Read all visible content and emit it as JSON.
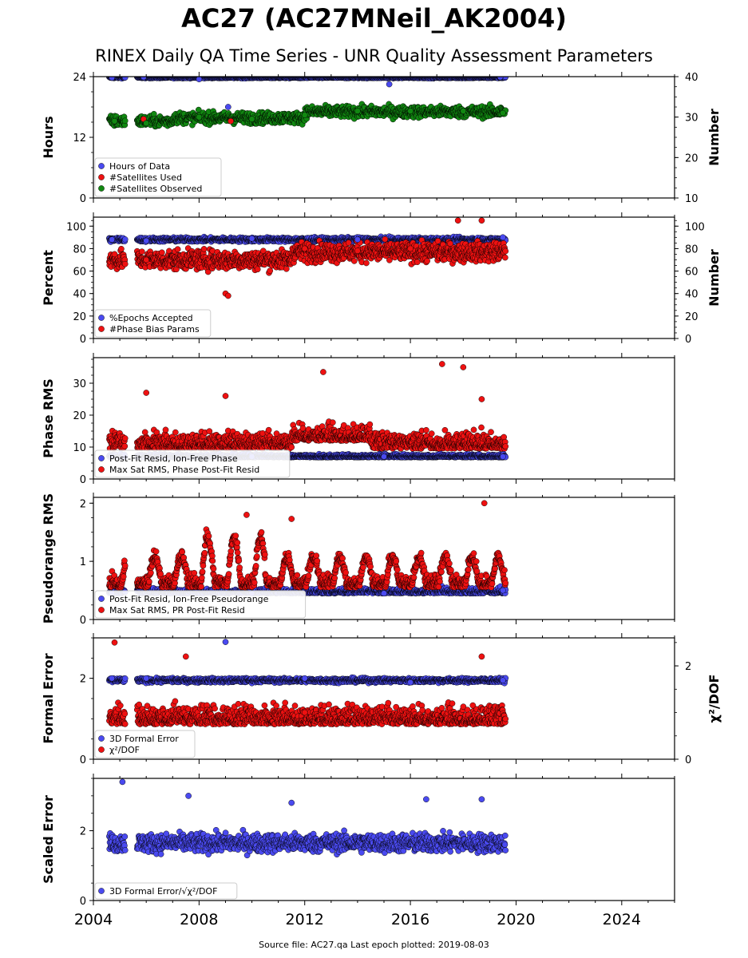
{
  "title": "AC27 (AC27MNeil_AK2004)",
  "subtitle": "RINEX Daily QA Time Series - UNR Quality Assessment Parameters",
  "footer": "Source file: AC27.qa Last epoch plotted: 2019-08-03",
  "colors": {
    "blue": "#4a4af0",
    "red": "#ee1111",
    "green": "#118811",
    "dark": "#1a1a55"
  },
  "chart_data": [
    {
      "type": "scatter",
      "ylabel": "Hours",
      "ylim": [
        0,
        24
      ],
      "yticks": [
        0,
        12,
        24
      ],
      "y2label": "Number",
      "y2lim": [
        10,
        40
      ],
      "y2ticks": [
        10,
        20,
        30,
        40
      ],
      "xlim": [
        2004,
        2026
      ],
      "legend": "lower-left",
      "series": [
        {
          "name": "Hours of Data",
          "color": "blue",
          "axis": "left",
          "x": [
            2004.7,
            2005.9,
            2008.0,
            2009.1,
            2015.2,
            2019.4
          ],
          "y": [
            23.8,
            23.9,
            23.5,
            18.0,
            22.5,
            23.9
          ]
        },
        {
          "name": "#Satellites Used",
          "color": "red",
          "axis": "right",
          "x": [
            2005.9,
            2009.2
          ],
          "y": [
            29.5,
            29.0
          ]
        },
        {
          "name": "#Satellites Observed",
          "color": "green",
          "axis": "right",
          "x": [
            2004.8,
            2006.0,
            2008.0,
            2010.0,
            2012.0,
            2014.0,
            2016.0,
            2018.0,
            2019.5
          ],
          "y": [
            29.0,
            28.5,
            30.0,
            29.5,
            30.5,
            31.5,
            31.5,
            31.5,
            31.0
          ]
        }
      ]
    },
    {
      "type": "scatter",
      "ylabel": "Percent",
      "ylim": [
        0,
        108
      ],
      "yticks": [
        0,
        20,
        40,
        60,
        80,
        100
      ],
      "y2label": "Number",
      "y2lim": [
        0,
        108
      ],
      "y2ticks": [
        0,
        20,
        40,
        60,
        80,
        100
      ],
      "xlim": [
        2004,
        2026
      ],
      "legend": "lower-left",
      "series": [
        {
          "name": "%Epochs Accepted",
          "color": "blue",
          "axis": "left",
          "x": [
            2004.7,
            2006.0,
            2010.0,
            2014.0,
            2019.5
          ],
          "y": [
            88,
            87,
            89,
            88,
            90
          ]
        },
        {
          "name": "#Phase Bias Params",
          "color": "red",
          "axis": "right",
          "x": [
            2004.8,
            2006.0,
            2009.0,
            2009.1,
            2012.0,
            2014.0,
            2016.0,
            2017.8,
            2018.7
          ],
          "y": [
            75,
            70,
            40,
            38,
            80,
            78,
            80,
            105,
            105
          ]
        }
      ]
    },
    {
      "type": "scatter",
      "ylabel": "Phase RMS",
      "ylim": [
        0,
        38
      ],
      "yticks": [
        0,
        10,
        20,
        30
      ],
      "xlim": [
        2004,
        2026
      ],
      "legend": "lower-left",
      "series": [
        {
          "name": "Post-Fit Resid, Ion-Free Phase",
          "color": "blue",
          "axis": "left",
          "x": [
            2004.7,
            2010.0,
            2015.0,
            2019.5
          ],
          "y": [
            7,
            7,
            7,
            7
          ]
        },
        {
          "name": "Max Sat RMS, Phase Post-Fit Resid",
          "color": "red",
          "axis": "left",
          "x": [
            2006.0,
            2009.0,
            2012.7,
            2017.2,
            2018.0,
            2018.7
          ],
          "y": [
            27,
            26,
            33.5,
            36,
            35,
            25
          ]
        }
      ]
    },
    {
      "type": "scatter",
      "ylabel": "Pseudorange RMS",
      "ylim": [
        0,
        2.1
      ],
      "yticks": [
        0,
        1,
        2
      ],
      "xlim": [
        2004,
        2026
      ],
      "legend": "lower-left",
      "series": [
        {
          "name": "Post-Fit Resid, Ion-Free Pseudorange",
          "color": "blue",
          "axis": "left",
          "x": [
            2004.7,
            2010.0,
            2015.0,
            2019.5
          ],
          "y": [
            0.45,
            0.45,
            0.45,
            0.5
          ]
        },
        {
          "name": "Max Sat RMS, PR Post-Fit Resid",
          "color": "red",
          "axis": "left",
          "x": [
            2009.8,
            2011.5,
            2018.8
          ],
          "y": [
            1.8,
            1.73,
            2.0
          ]
        }
      ]
    },
    {
      "type": "scatter",
      "ylabel": "Formal Error",
      "ylim": [
        0,
        3.0
      ],
      "yticks": [
        0,
        2
      ],
      "y2label": "χ²/DOF",
      "y2lim": [
        0,
        2.6
      ],
      "y2ticks": [
        0,
        2
      ],
      "xlim": [
        2004,
        2026
      ],
      "legend": "lower-left",
      "series": [
        {
          "name": "3D Formal Error",
          "color": "blue",
          "axis": "left",
          "x": [
            2004.7,
            2006.0,
            2009.0,
            2012.0,
            2016.0,
            2019.5
          ],
          "y": [
            2.0,
            2.0,
            2.9,
            2.0,
            1.9,
            1.95
          ]
        },
        {
          "name": "χ²/DOF",
          "color": "red",
          "axis": "right",
          "x": [
            2004.8,
            2007.5,
            2012.0,
            2018.7
          ],
          "y": [
            2.5,
            2.2,
            1.0,
            2.2
          ]
        }
      ]
    },
    {
      "type": "scatter",
      "ylabel": "Scaled Error",
      "ylim": [
        0,
        3.5
      ],
      "yticks": [
        0,
        2
      ],
      "xlim": [
        2004,
        2026
      ],
      "xticks": [
        2004,
        2008,
        2012,
        2016,
        2020,
        2024
      ],
      "legend": "lower-left",
      "series": [
        {
          "name": "3D Formal Error/√χ²/DOF",
          "color": "blue",
          "axis": "left",
          "x": [
            2005.1,
            2007.6,
            2011.5,
            2016.6,
            2018.7
          ],
          "y": [
            3.4,
            3.0,
            2.8,
            2.9,
            2.9
          ]
        }
      ]
    }
  ]
}
